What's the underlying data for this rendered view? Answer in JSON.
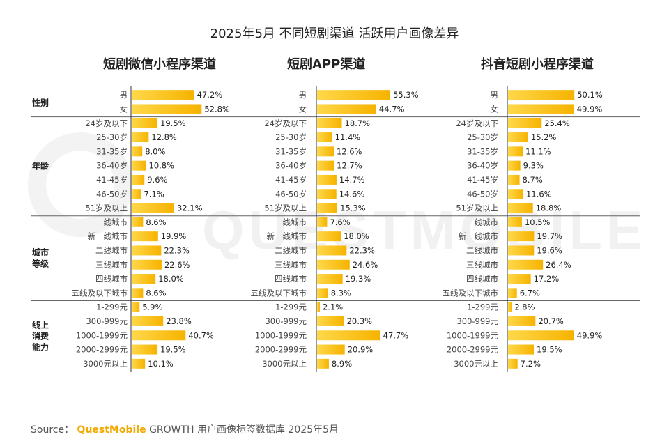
{
  "title": "2025年5月 不同短剧渠道 活跃用户画像差异",
  "watermark": "QUESTMOBILE",
  "colors": {
    "bar_start": "#ffd84a",
    "bar_end": "#f6b300",
    "divider": "#666666"
  },
  "source": {
    "prefix": "Source：",
    "brand": "QuestMobile",
    "suffix": "GROWTH 用户画像标签数据库 2025年5月"
  },
  "chart_data": {
    "type": "bar",
    "groups": [
      {
        "name": "性别",
        "categories": [
          "男",
          "女"
        ]
      },
      {
        "name": "年龄",
        "categories": [
          "24岁及以下",
          "25-30岁",
          "31-35岁",
          "36-40岁",
          "41-45岁",
          "46-50岁",
          "51岁及以上"
        ]
      },
      {
        "name": "城市\n等级",
        "categories": [
          "一线城市",
          "新一线城市",
          "二线城市",
          "三线城市",
          "四线城市",
          "五线及以下城市"
        ]
      },
      {
        "name": "线上\n消费\n能力",
        "categories": [
          "1-299元",
          "300-999元",
          "1000-1999元",
          "2000-2999元",
          "3000元以上"
        ]
      }
    ],
    "series": [
      {
        "name": "短剧微信小程序渠道",
        "values": [
          [
            47.2,
            52.8
          ],
          [
            19.5,
            12.8,
            8.0,
            10.8,
            9.6,
            7.1,
            32.1
          ],
          [
            8.6,
            19.9,
            22.3,
            22.6,
            18.0,
            8.6
          ],
          [
            5.9,
            23.8,
            40.7,
            19.5,
            10.1
          ]
        ]
      },
      {
        "name": "短剧APP渠道",
        "values": [
          [
            55.3,
            44.7
          ],
          [
            18.7,
            11.4,
            12.6,
            12.7,
            14.7,
            14.6,
            15.3
          ],
          [
            7.6,
            18.0,
            22.3,
            24.6,
            19.3,
            8.3
          ],
          [
            2.1,
            20.3,
            47.7,
            20.9,
            8.9
          ]
        ]
      },
      {
        "name": "抖音短剧小程序渠道",
        "values": [
          [
            50.1,
            49.9
          ],
          [
            25.4,
            15.2,
            11.1,
            9.3,
            8.7,
            11.6,
            18.8
          ],
          [
            10.5,
            19.7,
            19.6,
            26.4,
            17.2,
            6.7
          ],
          [
            2.8,
            20.7,
            49.9,
            19.5,
            7.2
          ]
        ]
      }
    ],
    "unit": "%"
  }
}
